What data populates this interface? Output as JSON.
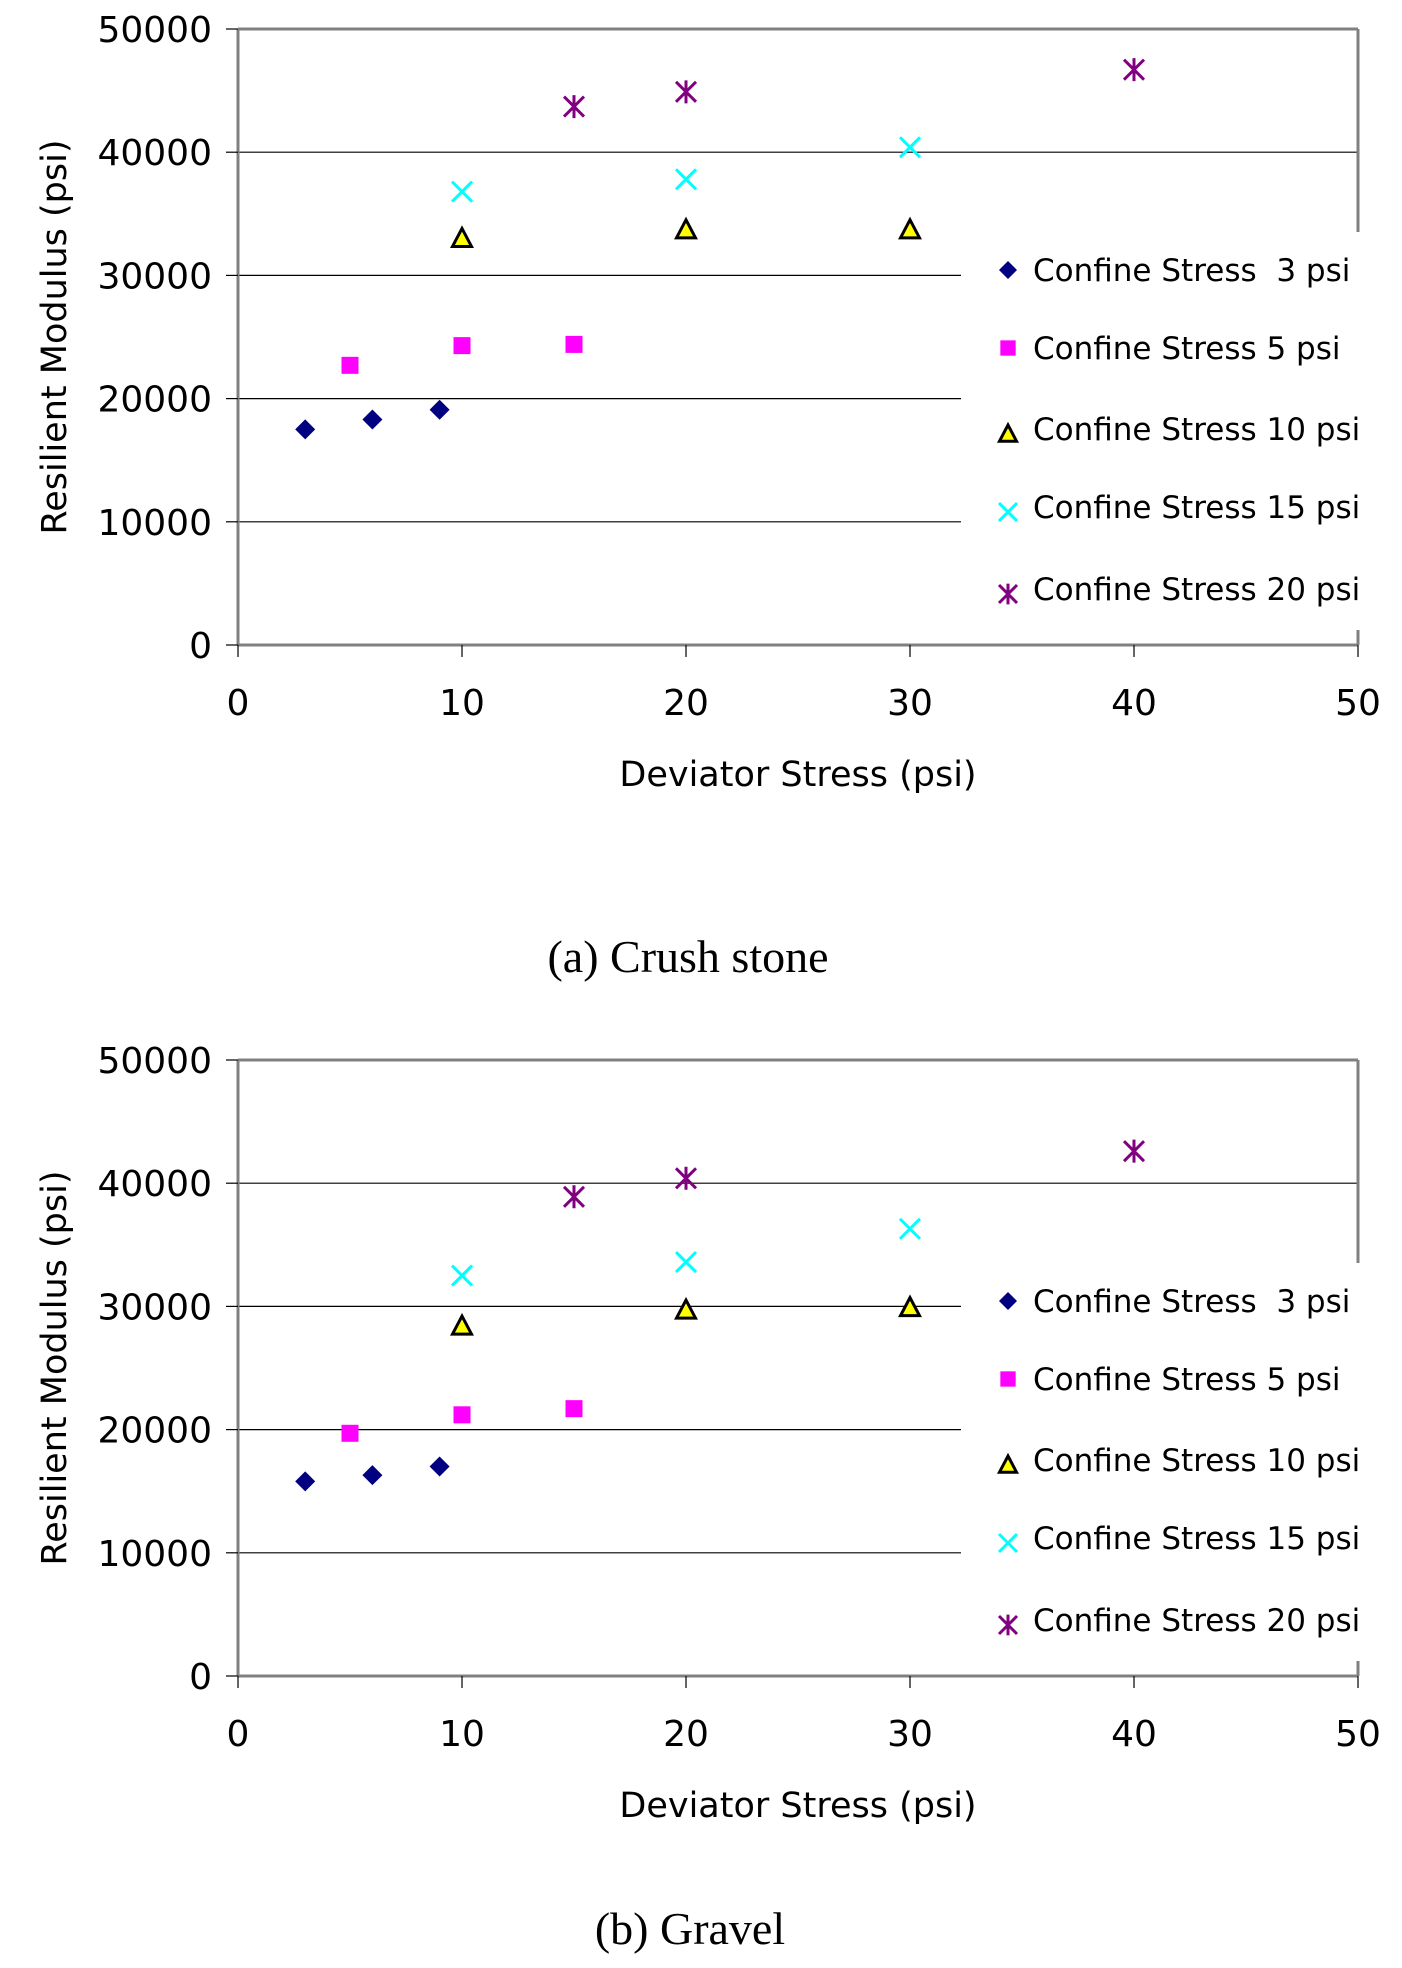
{
  "chart_data": [
    {
      "type": "scatter",
      "caption": "(a) Crush stone",
      "xlabel": "Deviator Stress (psi)",
      "ylabel": "Resilient Modulus (psi)",
      "xlim": [
        0,
        50
      ],
      "ylim": [
        0,
        50000
      ],
      "xticks": [
        "0",
        "10",
        "20",
        "30",
        "40",
        "50"
      ],
      "yticks": [
        "0",
        "10000",
        "20000",
        "30000",
        "40000",
        "50000"
      ],
      "grid": true,
      "legend_position": "right",
      "series": [
        {
          "name": "Confine Stress  3 psi",
          "marker": "diamond",
          "color": "#000080",
          "x": [
            3,
            6,
            9
          ],
          "y": [
            17500,
            18300,
            19100
          ]
        },
        {
          "name": "Confine Stress 5 psi",
          "marker": "square",
          "color": "#ff00ff",
          "x": [
            5,
            10,
            15
          ],
          "y": [
            22700,
            24300,
            24400
          ]
        },
        {
          "name": "Confine Stress 10 psi",
          "marker": "triangle",
          "color": "#ffff00",
          "x": [
            10,
            20,
            30
          ],
          "y": [
            33000,
            33700,
            33700
          ]
        },
        {
          "name": "Confine Stress 15 psi",
          "marker": "x",
          "color": "#00ffff",
          "x": [
            10,
            20,
            30
          ],
          "y": [
            36800,
            37800,
            40400
          ]
        },
        {
          "name": "Confine Stress 20 psi",
          "marker": "asterisk",
          "color": "#800080",
          "x": [
            15,
            20,
            40
          ],
          "y": [
            43700,
            44900,
            46700
          ]
        }
      ]
    },
    {
      "type": "scatter",
      "caption": "(b) Gravel",
      "xlabel": "Deviator Stress (psi)",
      "ylabel": "Resilient Modulus (psi)",
      "xlim": [
        0,
        50
      ],
      "ylim": [
        0,
        50000
      ],
      "xticks": [
        "0",
        "10",
        "20",
        "30",
        "40",
        "50"
      ],
      "yticks": [
        "0",
        "10000",
        "20000",
        "30000",
        "40000",
        "50000"
      ],
      "grid": true,
      "legend_position": "right",
      "series": [
        {
          "name": "Confine Stress  3 psi",
          "marker": "diamond",
          "color": "#000080",
          "x": [
            3,
            6,
            9
          ],
          "y": [
            15800,
            16300,
            17000
          ]
        },
        {
          "name": "Confine Stress 5 psi",
          "marker": "square",
          "color": "#ff00ff",
          "x": [
            5,
            10,
            15
          ],
          "y": [
            19700,
            21200,
            21700
          ]
        },
        {
          "name": "Confine Stress 10 psi",
          "marker": "triangle",
          "color": "#ffff00",
          "x": [
            10,
            20,
            30
          ],
          "y": [
            28400,
            29700,
            29900
          ]
        },
        {
          "name": "Confine Stress 15 psi",
          "marker": "x",
          "color": "#00ffff",
          "x": [
            10,
            20,
            30
          ],
          "y": [
            32500,
            33600,
            36300
          ]
        },
        {
          "name": "Confine Stress 20 psi",
          "marker": "asterisk",
          "color": "#800080",
          "x": [
            15,
            20,
            40
          ],
          "y": [
            38900,
            40400,
            42600
          ]
        }
      ]
    }
  ]
}
